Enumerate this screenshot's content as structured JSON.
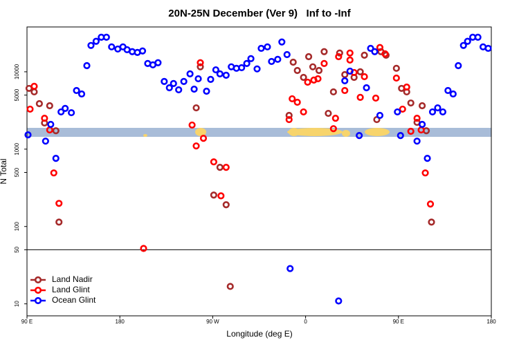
{
  "chart_data": {
    "type": "scatter",
    "title": "20N-25N December (Ver 9)   Inf to -Inf",
    "xlabel": "Longitude (deg E)",
    "ylabel": "N Total",
    "xlim": [
      90,
      540
    ],
    "ylim": [
      7,
      38000
    ],
    "log_y": true,
    "legend": "bottom-left",
    "hline": 50,
    "xticks": [
      {
        "value": 90,
        "label": "90 E"
      },
      180,
      {
        "value": 270,
        "label": "90 W"
      },
      {
        "value": 360,
        "label": "0"
      },
      {
        "value": 450,
        "label": "90 E"
      },
      {
        "value": 540,
        "label": "180"
      }
    ],
    "yticks": [
      10,
      50,
      100,
      500,
      1000,
      5000,
      10000
    ],
    "series": [
      {
        "name": "Land Nadir",
        "color": "#a52a2a",
        "x": [
          92,
          97,
          102,
          107,
          112,
          118,
          121,
          254,
          258,
          271,
          277,
          283,
          287,
          344,
          348,
          352,
          358,
          363,
          367,
          373,
          378,
          382,
          387,
          393,
          398,
          407,
          413,
          417,
          429,
          433,
          438,
          448,
          453,
          458,
          462,
          468,
          473,
          477,
          482
        ],
        "values": [
          6100,
          5500,
          3870,
          2180,
          3640,
          1730,
          114,
          3420,
          11600,
          255,
          582,
          191,
          16.8,
          2730,
          13300,
          10400,
          8470,
          15700,
          11600,
          10400,
          18200,
          2900,
          5500,
          17500,
          9200,
          8470,
          10000,
          16400,
          2410,
          18200,
          16400,
          11100,
          6100,
          5500,
          3950,
          2220,
          3640,
          1730,
          114
        ]
      },
      {
        "name": "Land Glint",
        "color": "#ff0000",
        "x": [
          93,
          97,
          107,
          112,
          116,
          121,
          203,
          250,
          254,
          258,
          261,
          271,
          278,
          283,
          344,
          347,
          352,
          358,
          362,
          368,
          372,
          378,
          387,
          389,
          392,
          398,
          403,
          403,
          407,
          413,
          417,
          428,
          432,
          437,
          448,
          454,
          458,
          462,
          468,
          472,
          476,
          481
        ],
        "values": [
          3290,
          6490,
          2510,
          1770,
          493,
          199,
          52,
          2050,
          1100,
          13100,
          1380,
          685,
          249,
          582,
          2410,
          4480,
          4040,
          3030,
          7340,
          7820,
          8130,
          12800,
          1840,
          2510,
          15700,
          5730,
          17500,
          14200,
          9790,
          4670,
          8650,
          4570,
          20600,
          17100,
          8300,
          3290,
          6350,
          1700,
          2510,
          1770,
          493,
          195
        ]
      },
      {
        "name": "Ocean Glint",
        "color": "#0000ff",
        "x": [
          91,
          108,
          113,
          118,
          123,
          127,
          133,
          138,
          143,
          148,
          152,
          157,
          162,
          167,
          172,
          178,
          183,
          187,
          192,
          197,
          202,
          207,
          212,
          217,
          223,
          228,
          232,
          237,
          242,
          248,
          252,
          256,
          264,
          268,
          273,
          277,
          283,
          288,
          293,
          298,
          303,
          307,
          313,
          317,
          323,
          327,
          333,
          337,
          342,
          345,
          392,
          398,
          403,
          412,
          419,
          423,
          427,
          432,
          449,
          452,
          468,
          473,
          478,
          483,
          488,
          493,
          498,
          503,
          508,
          513,
          517,
          522,
          527,
          532,
          537
        ],
        "values": [
          1530,
          1270,
          2090,
          760,
          3030,
          3360,
          2960,
          5730,
          5170,
          12000,
          21900,
          24800,
          28000,
          28000,
          21000,
          19700,
          21000,
          19300,
          18200,
          17800,
          18600,
          12800,
          12300,
          13100,
          7500,
          6220,
          7050,
          5850,
          7500,
          9400,
          5970,
          8130,
          5610,
          7980,
          10600,
          9400,
          9020,
          11600,
          11100,
          11300,
          12800,
          14800,
          10900,
          20100,
          21000,
          13600,
          14500,
          24300,
          16700,
          28.6,
          10.9,
          7650,
          10200,
          1500,
          6220,
          20100,
          18200,
          2730,
          3030,
          1500,
          1270,
          2090,
          760,
          3030,
          3420,
          3030,
          5730,
          5170,
          12000,
          21900,
          24800,
          28000,
          28000,
          21000,
          20100
        ]
      }
    ]
  }
}
